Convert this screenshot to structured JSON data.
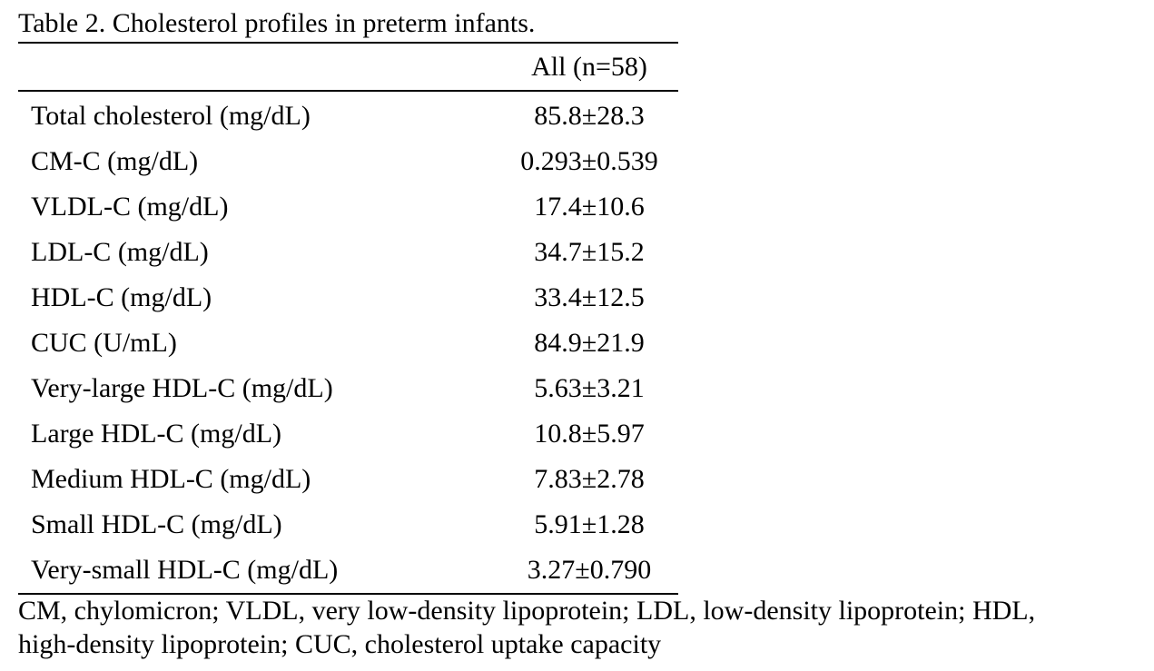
{
  "table": {
    "caption": "Table 2. Cholesterol profiles in preterm infants.",
    "column_header": "All (n=58)",
    "rows": [
      {
        "label": "Total cholesterol (mg/dL)",
        "value": "85.8±28.3"
      },
      {
        "label": "CM-C (mg/dL)",
        "value": "0.293±0.539"
      },
      {
        "label": "VLDL-C (mg/dL)",
        "value": "17.4±10.6"
      },
      {
        "label": "LDL-C (mg/dL)",
        "value": "34.7±15.2"
      },
      {
        "label": "HDL-C (mg/dL)",
        "value": "33.4±12.5"
      },
      {
        "label": "CUC (U/mL)",
        "value": "84.9±21.9"
      },
      {
        "label": "Very-large HDL-C (mg/dL)",
        "value": "5.63±3.21"
      },
      {
        "label": "Large HDL-C (mg/dL)",
        "value": "10.8±5.97"
      },
      {
        "label": "Medium HDL-C (mg/dL)",
        "value": "7.83±2.78"
      },
      {
        "label": "Small HDL-C (mg/dL)",
        "value": "5.91±1.28"
      },
      {
        "label": "Very-small HDL-C (mg/dL)",
        "value": "3.27±0.790"
      }
    ],
    "footnote": {
      "line1": "CM, chylomicron; VLDL, very low-density lipoprotein; LDL, low-density lipoprotein; HDL,",
      "line2": "high-density lipoprotein; CUC, cholesterol uptake capacity"
    }
  }
}
